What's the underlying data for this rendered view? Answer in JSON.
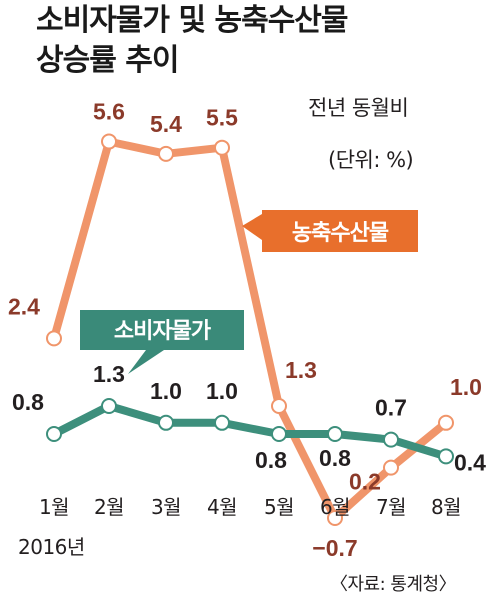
{
  "title_line1": "소비자물가 및 농축수산물",
  "title_line2": "상승률 추이",
  "basis": "전년 동월비",
  "unit": "(단위: %)",
  "year_label": "2016년",
  "source": "〈자료: 통계청〉",
  "colors": {
    "farm_line": "#f0956a",
    "farm_label": "#8b3a2a",
    "farm_tag": "#e86f2c",
    "cpi_line": "#3d8f7c",
    "cpi_label": "#231f20",
    "cpi_tag": "#3a8a79"
  },
  "chart_data": {
    "type": "line",
    "categories": [
      "1월",
      "2월",
      "3월",
      "4월",
      "5월",
      "6월",
      "7월",
      "8월"
    ],
    "series": [
      {
        "name": "농축수산물",
        "values": [
          2.4,
          5.6,
          5.4,
          5.5,
          1.3,
          -0.7,
          0.2,
          1.0
        ],
        "labels": [
          "2.4",
          "5.6",
          "5.4",
          "5.5",
          "1.3",
          "−0.7",
          "0.2",
          "1.0"
        ]
      },
      {
        "name": "소비자물가",
        "values": [
          0.8,
          1.3,
          1.0,
          1.0,
          0.8,
          0.8,
          0.7,
          0.4
        ],
        "labels": [
          "0.8",
          "1.3",
          "1.0",
          "1.0",
          "0.8",
          "0.8",
          "0.7",
          "0.4"
        ]
      }
    ],
    "ylim": [
      -0.7,
      5.6
    ],
    "grid": false
  }
}
